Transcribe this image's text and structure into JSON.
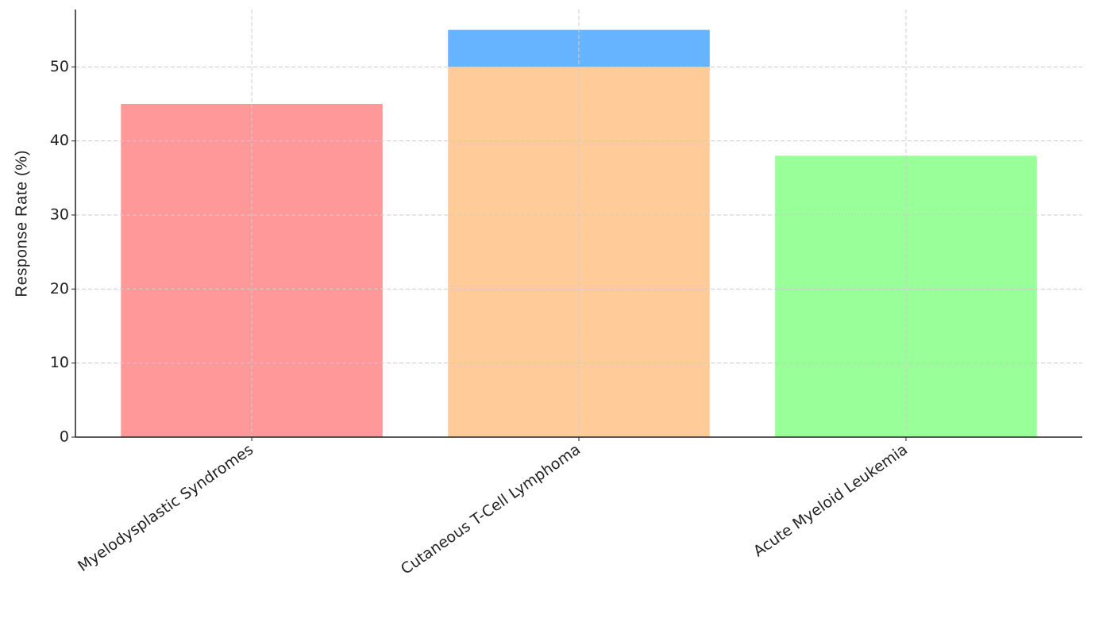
{
  "chart_data": {
    "type": "bar",
    "stacked": true,
    "ylabel": "Response Rate (%)",
    "categories": [
      "Myelodysplastic Syndromes",
      "Cutaneous T-Cell Lymphoma",
      "Acute Myeloid Leukemia"
    ],
    "series": [
      {
        "colors": [
          "#ff9999",
          "#ffcc99",
          "#99ff99"
        ],
        "values": [
          45,
          50,
          38
        ]
      },
      {
        "color": "#66b3ff",
        "values": [
          null,
          5,
          null
        ]
      }
    ],
    "ylim": [
      0,
      57.75
    ],
    "yticks": [
      0,
      10,
      20,
      30,
      40,
      50
    ],
    "grid": true
  }
}
